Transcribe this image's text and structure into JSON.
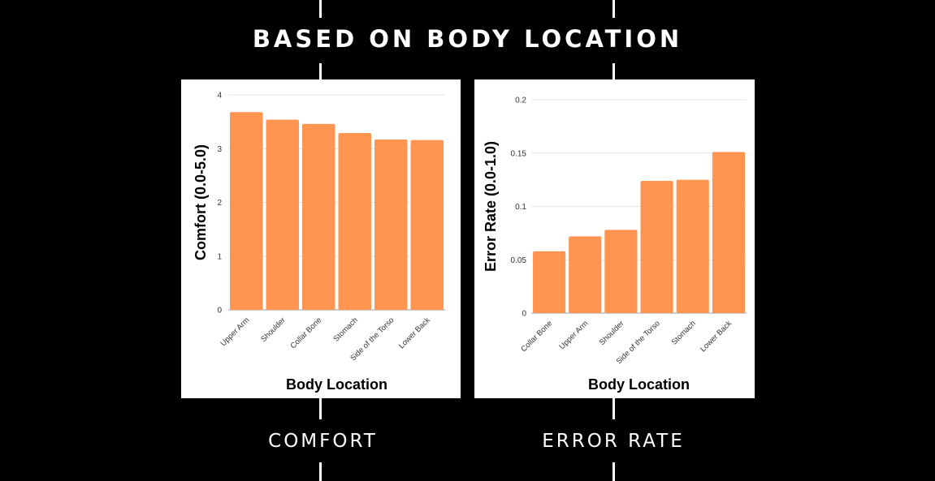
{
  "page": {
    "heading": "BASED ON BODY LOCATION",
    "captions": {
      "comfort": "COMFORT",
      "error_rate": "ERROR RATE"
    },
    "bar_color": "#FF9551",
    "background_color": "#000000"
  },
  "chart_data": [
    {
      "type": "bar",
      "title": "",
      "xlabel": "Body Location",
      "ylabel": "Comfort (0.0-5.0)",
      "categories": [
        "Upper Arm",
        "Shoulder",
        "Collar Bone",
        "Stomach",
        "Side of the Torso",
        "Lower Back"
      ],
      "values": [
        3.68,
        3.54,
        3.46,
        3.29,
        3.17,
        3.16
      ],
      "ylim": [
        0,
        4
      ],
      "yticks": [
        0,
        1,
        2,
        3,
        4
      ],
      "ytick_labels": [
        "0",
        "1",
        "2",
        "3",
        "4"
      ],
      "grid": true,
      "legend": "none"
    },
    {
      "type": "bar",
      "title": "",
      "xlabel": "Body Location",
      "ylabel": "Error Rate (0.0-1.0)",
      "categories": [
        "Collar Bone",
        "Upper Arm",
        "Shoulder",
        "Side of the Torso",
        "Stomach",
        "Lower Back"
      ],
      "values": [
        0.058,
        0.072,
        0.078,
        0.124,
        0.125,
        0.151
      ],
      "ylim": [
        0,
        0.2
      ],
      "yticks": [
        0,
        0.05,
        0.1,
        0.15,
        0.2
      ],
      "ytick_labels": [
        "0",
        "0.05",
        "0.1",
        "0.15",
        "0.2"
      ],
      "grid": true,
      "legend": "none"
    }
  ]
}
